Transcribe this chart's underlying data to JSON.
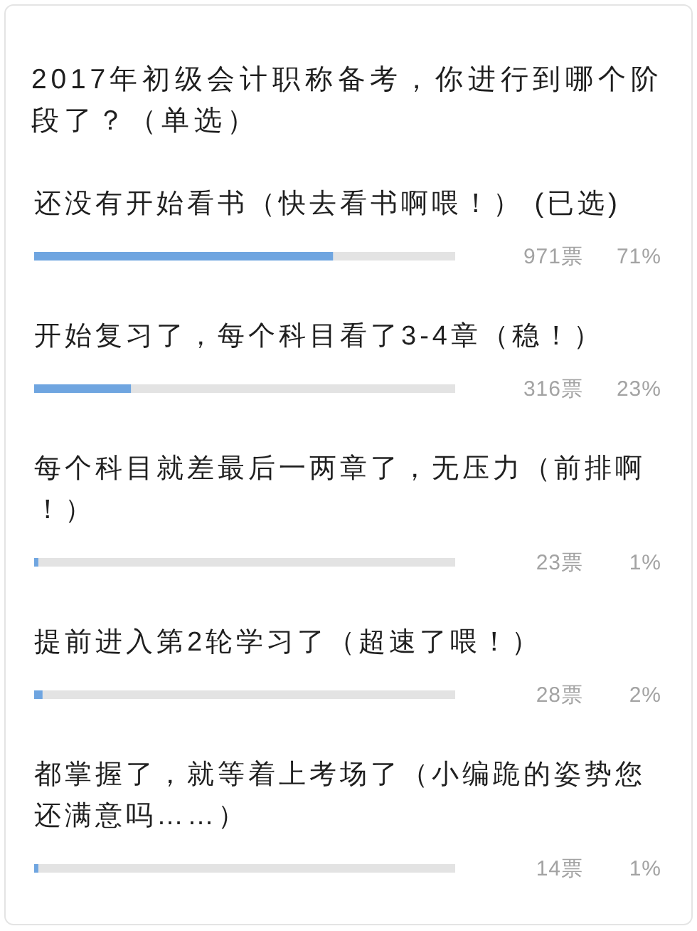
{
  "chart_data": {
    "type": "bar",
    "orientation": "horizontal",
    "title": "2017年初级会计职称备考，你进行到哪个阶段了？（单选）",
    "categories": [
      "还没有开始看书（快去看书啊喂！） (已选)",
      "开始复习了，每个科目看了3-4章（稳！）",
      "每个科目就差最后一两章了，无压力（前排啊！）",
      "提前进入第2轮学习了（超速了喂！）",
      "都掌握了，就等着上考场了（小编跪的姿势您还满意吗……）"
    ],
    "values": [
      71,
      23,
      1,
      2,
      1
    ],
    "color": "#6fa5e0",
    "xlim": [
      0,
      100
    ],
    "value_labels": [
      "71%",
      "23%",
      "1%",
      "2%",
      "1%"
    ],
    "annotations": [
      "971票",
      "316票",
      "23票",
      "28票",
      "14票"
    ],
    "tick_labels": "y"
  }
}
